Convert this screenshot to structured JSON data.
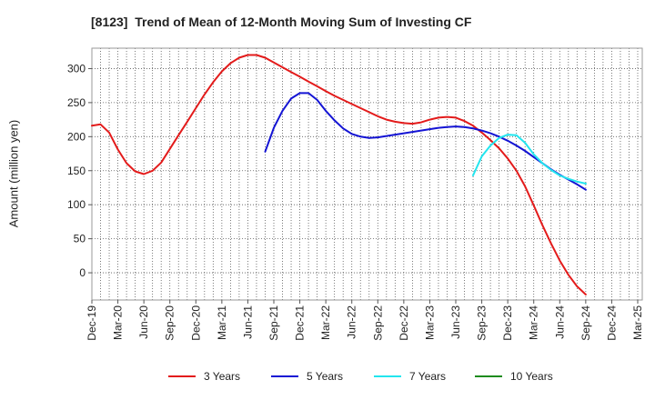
{
  "chart_data": {
    "type": "line",
    "title": "[8123]  Trend of Mean of 12-Month Moving Sum of Investing CF",
    "ylabel": "Amount (million yen)",
    "x_ticks": [
      "Dec-19",
      "Mar-20",
      "Jun-20",
      "Sep-20",
      "Dec-20",
      "Mar-21",
      "Jun-21",
      "Sep-21",
      "Dec-21",
      "Mar-22",
      "Jun-22",
      "Sep-22",
      "Dec-22",
      "Mar-23",
      "Jun-23",
      "Sep-23",
      "Dec-23",
      "Mar-24",
      "Jun-24",
      "Sep-24",
      "Dec-24",
      "Mar-25"
    ],
    "x_tick_step_months": 3,
    "data_interval_months": 1,
    "y_ticks": [
      0,
      50,
      100,
      150,
      200,
      250,
      300
    ],
    "ylim": [
      -40,
      330
    ],
    "grid": true,
    "legend": "bottom",
    "series": [
      {
        "name": "3 Years",
        "color": "#e31b1b",
        "start_month": 0,
        "values": [
          216,
          218,
          206,
          181,
          161,
          149,
          145,
          150,
          162,
          182,
          202,
          222,
          242,
          262,
          280,
          296,
          308,
          316,
          320,
          320,
          316,
          309,
          302,
          295,
          288,
          281,
          274,
          267,
          260,
          254,
          248,
          242,
          236,
          230,
          225,
          222,
          220,
          219,
          221,
          225,
          228,
          229,
          228,
          223,
          216,
          206,
          195,
          183,
          168,
          150,
          127,
          99,
          70,
          43,
          18,
          -3,
          -20,
          -32
        ]
      },
      {
        "name": "5 Years",
        "color": "#1414d4",
        "start_month": 20,
        "values": [
          178,
          213,
          238,
          256,
          264,
          264,
          254,
          238,
          224,
          212,
          204,
          200,
          198,
          199,
          201,
          203,
          205,
          207,
          209,
          211,
          213,
          214,
          215,
          214,
          212,
          209,
          205,
          200,
          194,
          187,
          179,
          170,
          161,
          152,
          144,
          137,
          130,
          122
        ]
      },
      {
        "name": "7 Years",
        "color": "#22e5ee",
        "start_month": 44,
        "values": [
          143,
          171,
          187,
          198,
          203,
          202,
          191,
          174,
          161,
          151,
          143,
          138,
          134,
          131
        ]
      },
      {
        "name": "10 Years",
        "color": "#1e8c1e",
        "start_month": 0,
        "values": []
      }
    ]
  }
}
